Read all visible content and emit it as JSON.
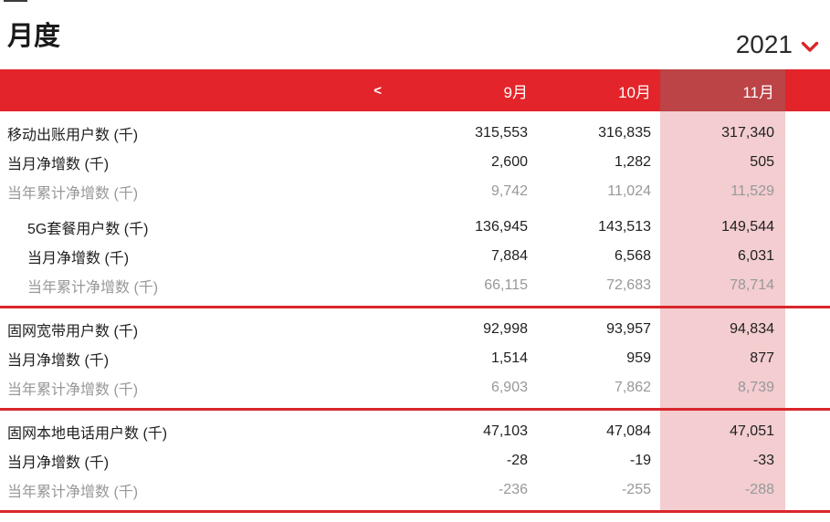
{
  "page": {
    "title": "月度",
    "year": "2021"
  },
  "header": {
    "prev_label": "<",
    "columns": [
      "9月",
      "10月",
      "11月"
    ],
    "highlight_column": "11月"
  },
  "colors": {
    "header_red": "#e3242a",
    "header_highlight_red": "#bc4346",
    "column_highlight_pink": "#f3cdcf",
    "separator_red": "#d9262b",
    "text_dark": "#1f1f1f",
    "text_muted": "#97989a"
  },
  "table": {
    "sections": [
      {
        "groups": [
          {
            "indent": false,
            "rows": [
              {
                "label": "移动出账用户数 (千)",
                "muted": false,
                "values": [
                  "315,553",
                  "316,835",
                  "317,340"
                ]
              },
              {
                "label": "当月净增数 (千)",
                "muted": false,
                "values": [
                  "2,600",
                  "1,282",
                  "505"
                ]
              },
              {
                "label": "当年累计净增数 (千)",
                "muted": true,
                "values": [
                  "9,742",
                  "11,024",
                  "11,529"
                ]
              }
            ]
          },
          {
            "indent": true,
            "rows": [
              {
                "label": "5G套餐用户数 (千)",
                "muted": false,
                "values": [
                  "136,945",
                  "143,513",
                  "149,544"
                ]
              },
              {
                "label": "当月净增数 (千)",
                "muted": false,
                "values": [
                  "7,884",
                  "6,568",
                  "6,031"
                ]
              },
              {
                "label": "当年累计净增数 (千)",
                "muted": true,
                "values": [
                  "66,115",
                  "72,683",
                  "78,714"
                ]
              }
            ]
          }
        ]
      },
      {
        "groups": [
          {
            "indent": false,
            "rows": [
              {
                "label": "固网宽带用户数 (千)",
                "muted": false,
                "values": [
                  "92,998",
                  "93,957",
                  "94,834"
                ]
              },
              {
                "label": "当月净增数 (千)",
                "muted": false,
                "values": [
                  "1,514",
                  "959",
                  "877"
                ]
              },
              {
                "label": "当年累计净增数 (千)",
                "muted": true,
                "values": [
                  "6,903",
                  "7,862",
                  "8,739"
                ]
              }
            ]
          }
        ]
      },
      {
        "groups": [
          {
            "indent": false,
            "rows": [
              {
                "label": "固网本地电话用户数 (千)",
                "muted": false,
                "values": [
                  "47,103",
                  "47,084",
                  "47,051"
                ]
              },
              {
                "label": "当月净增数 (千)",
                "muted": false,
                "values": [
                  "-28",
                  "-19",
                  "-33"
                ]
              },
              {
                "label": "当年累计净增数 (千)",
                "muted": true,
                "values": [
                  "-236",
                  "-255",
                  "-288"
                ]
              }
            ]
          }
        ]
      }
    ]
  }
}
